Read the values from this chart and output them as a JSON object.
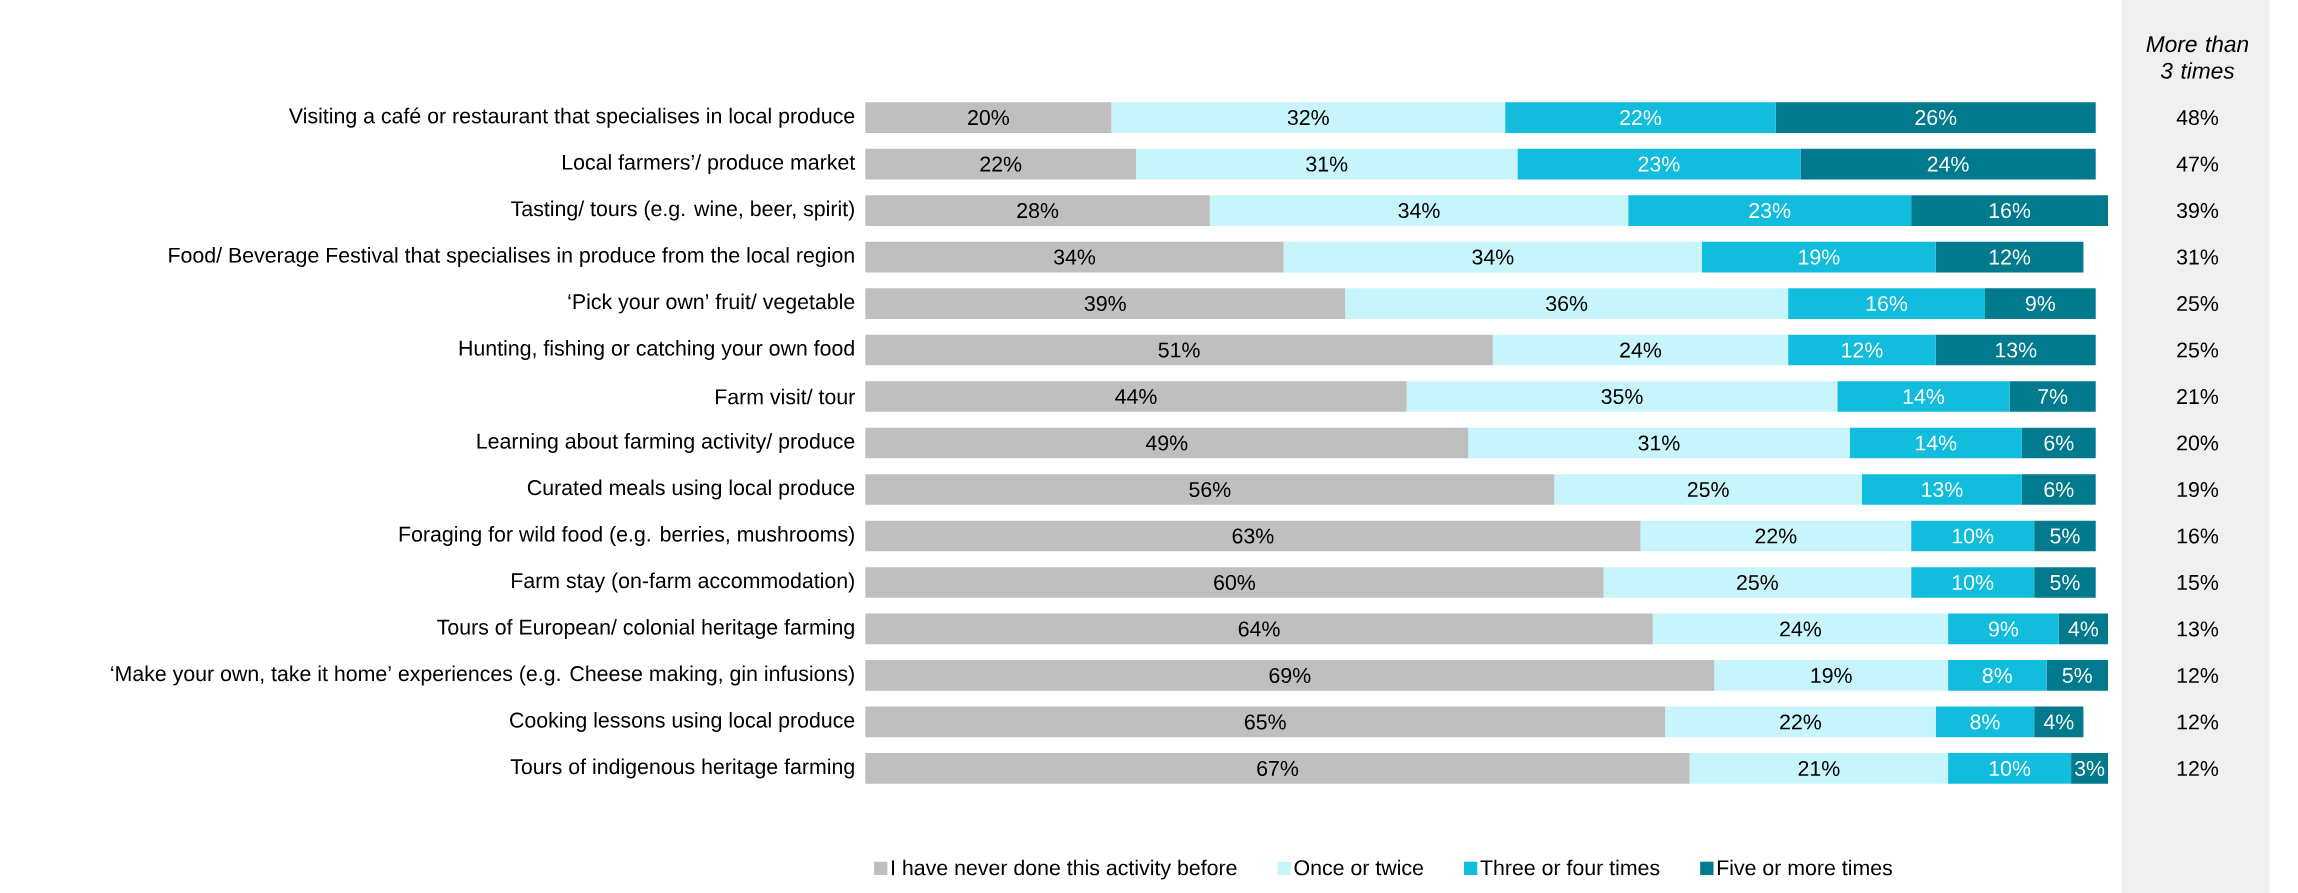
{
  "chart_data": {
    "type": "bar",
    "orientation": "horizontal",
    "stacked": true,
    "legend": "bottom",
    "categories": [
      "Visiting a café or restaurant that specialises in local produce",
      "Local farmers’/ produce market",
      "Tasting/ tours (e.g. wine, beer, spirit)",
      "Food/ Beverage Festival that specialises in produce from the local region",
      "‘Pick your own’ fruit/ vegetable",
      "Hunting, fishing or catching your own food",
      "Farm visit/ tour",
      "Learning about farming activity/ produce",
      "Curated meals using local produce",
      "Foraging for wild food (e.g. berries, mushrooms)",
      "Farm stay (on-farm accommodation)",
      "Tours of European/ colonial heritage farming",
      "‘Make your own, take it home’ experiences (e.g. Cheese making, gin infusions)",
      "Cooking lessons using local produce",
      "Tours of indigenous heritage farming"
    ],
    "series": [
      {
        "name": "I have never done this activity before",
        "color": "#bfbfbf",
        "values": [
          20,
          22,
          28,
          34,
          39,
          51,
          44,
          49,
          56,
          63,
          60,
          64,
          69,
          65,
          67
        ],
        "value_labels": [
          "20%",
          "22%",
          "28%",
          "34%",
          "39%",
          "51%",
          "44%",
          "49%",
          "56%",
          "63%",
          "60%",
          "64%",
          "69%",
          "65%",
          "67%"
        ]
      },
      {
        "name": "Once or twice",
        "color": "#c8f5fb",
        "values": [
          32,
          31,
          34,
          34,
          36,
          24,
          35,
          31,
          25,
          22,
          25,
          24,
          19,
          22,
          21
        ],
        "value_labels": [
          "32%",
          "31%",
          "34%",
          "34%",
          "36%",
          "24%",
          "35%",
          "31%",
          "25%",
          "22%",
          "25%",
          "24%",
          "19%",
          "22%",
          "21%"
        ]
      },
      {
        "name": "Three or four times",
        "color": "#12bcdc",
        "values": [
          22,
          23,
          23,
          19,
          16,
          12,
          14,
          14,
          13,
          10,
          10,
          9,
          8,
          8,
          10
        ],
        "value_labels": [
          "22%",
          "23%",
          "23%",
          "19%",
          "16%",
          "12%",
          "14%",
          "14%",
          "13%",
          "10%",
          "10%",
          "9%",
          "8%",
          "8%",
          "10%"
        ]
      },
      {
        "name": "Five or more times",
        "color": "#007a8c",
        "values": [
          26,
          24,
          16,
          12,
          9,
          13,
          7,
          6,
          6,
          5,
          5,
          4,
          5,
          4,
          3
        ],
        "value_labels": [
          "26%",
          "24%",
          "16%",
          "12%",
          "9%",
          "13%",
          "7%",
          "6%",
          "6%",
          "5%",
          "5%",
          "4%",
          "5%",
          "4%",
          "3%"
        ]
      }
    ],
    "annotations": [
      "More than 3 times",
      "48%",
      "47%",
      "39%",
      "31%",
      "25%",
      "25%",
      "21%",
      "20%",
      "19%",
      "16%",
      "15%",
      "13%",
      "12%",
      "12%",
      "12%"
    ]
  }
}
